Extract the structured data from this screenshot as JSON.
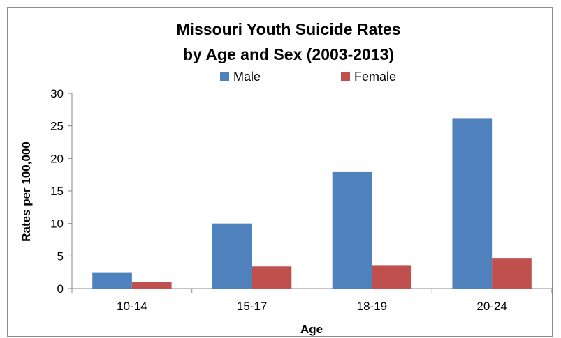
{
  "chart_data": {
    "type": "bar",
    "title_line1": "Missouri Youth Suicide Rates",
    "title_line2": "by Age and Sex (2003-2013)",
    "xlabel": "Age",
    "ylabel": "Rates per 100,000",
    "categories": [
      "10-14",
      "15-17",
      "18-19",
      "20-24"
    ],
    "series": [
      {
        "name": "Male",
        "values": [
          2.4,
          10.0,
          17.9,
          26.1
        ],
        "color": "#4f81bd"
      },
      {
        "name": "Female",
        "values": [
          1.0,
          3.4,
          3.6,
          4.7
        ],
        "color": "#c0504d"
      }
    ],
    "ylim": [
      0,
      30
    ],
    "yticks": [
      "0",
      "5",
      "10",
      "15",
      "20",
      "25",
      "30"
    ],
    "grid": false,
    "legend_position": "top"
  }
}
